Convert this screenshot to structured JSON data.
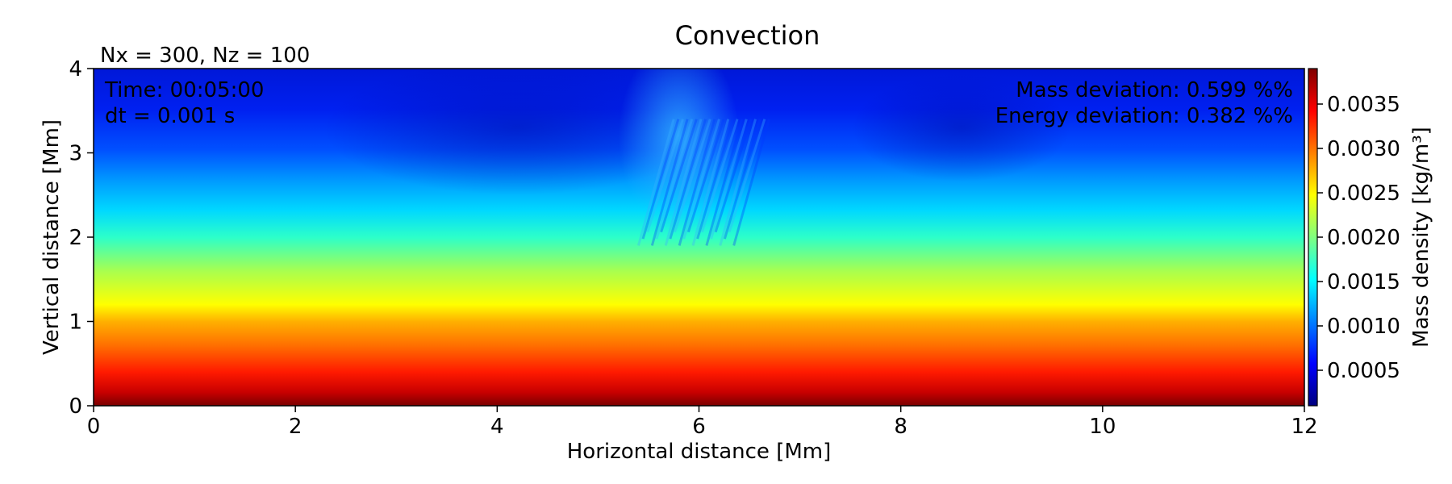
{
  "chart_data": {
    "type": "heatmap",
    "title": "Convection",
    "subtitle": "Nx = 300, Nz = 100",
    "xlabel": "Horizontal distance [Mm]",
    "ylabel": "Vertical distance [Mm]",
    "xlim": [
      0,
      12
    ],
    "ylim": [
      0,
      4
    ],
    "xticks": [
      "0",
      "2",
      "4",
      "6",
      "8",
      "10",
      "12"
    ],
    "yticks": [
      "0",
      "1",
      "2",
      "3",
      "4"
    ],
    "colormap": "jet",
    "colorbar": {
      "label": "Mass density [kg/m³]",
      "range": [
        0.0001,
        0.0039
      ],
      "ticks": [
        "0.0005",
        "0.0010",
        "0.0015",
        "0.0020",
        "0.0025",
        "0.0030",
        "0.0035"
      ]
    },
    "density_profile": {
      "height_Mm": [
        0,
        0.5,
        1.0,
        1.5,
        2.0,
        2.5,
        3.0,
        3.5,
        4.0
      ],
      "density": [
        0.0039,
        0.0031,
        0.0025,
        0.002,
        0.0016,
        0.0012,
        0.0008,
        0.0005,
        0.0003
      ]
    },
    "annotations": {
      "time": "Time: 00:05:00",
      "dt": "dt = 0.001 s",
      "mass": "Mass deviation: 0.599 %%",
      "energy": "Energy deviation: 0.382 %%"
    },
    "grid": false,
    "legend": "none"
  }
}
